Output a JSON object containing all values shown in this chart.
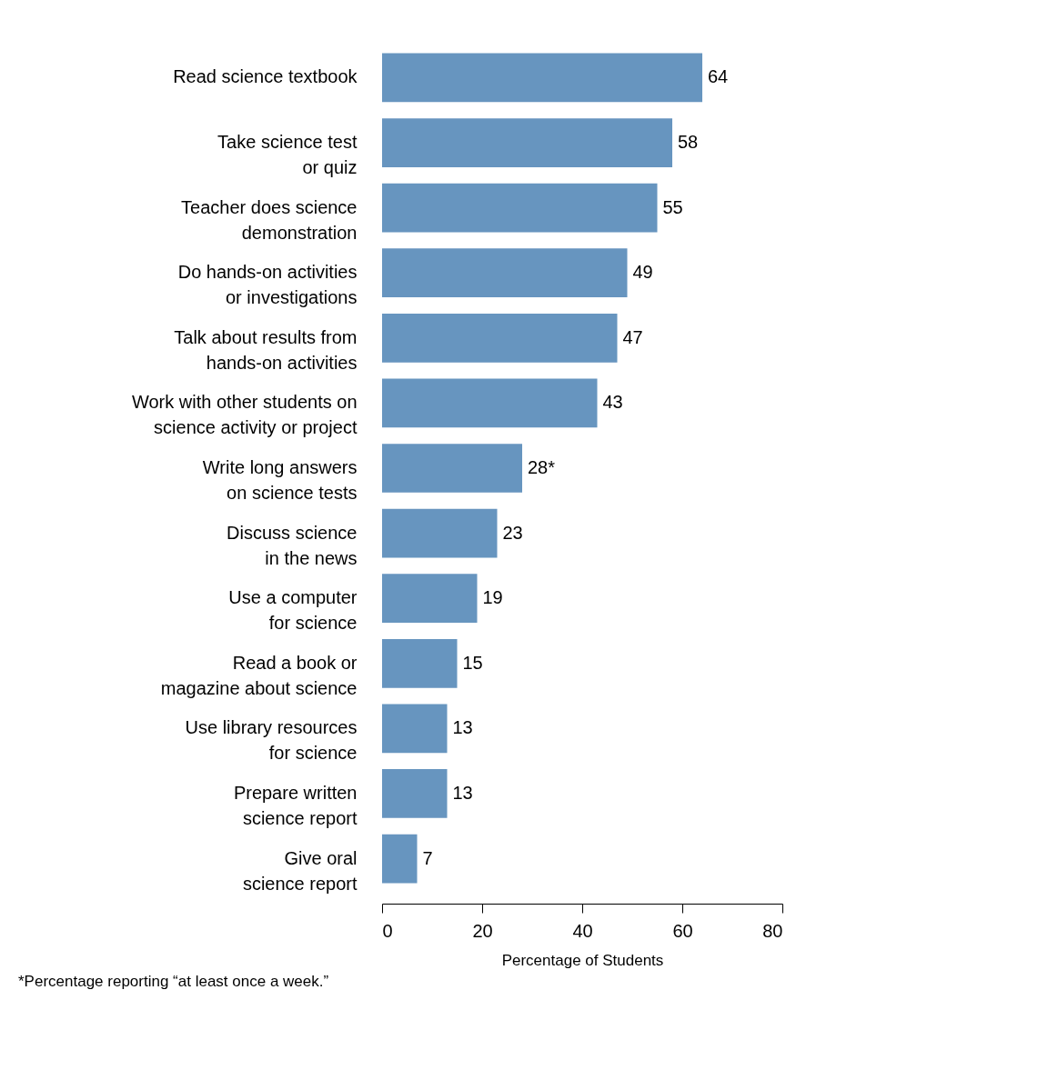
{
  "chart_data": {
    "type": "bar",
    "orientation": "horizontal",
    "categories": [
      "Read science textbook",
      "Take science test\nor quiz",
      "Teacher does science\ndemonstration",
      "Do hands-on activities\nor investigations",
      "Talk about results from\nhands-on activities",
      "Work with other students on\nscience activity or project",
      "Write long answers\non science tests",
      "Discuss science\nin the news",
      "Use a computer\nfor science",
      "Read a book or\nmagazine about science",
      "Use library resources\nfor science",
      "Prepare written\nscience report",
      "Give oral\nscience report"
    ],
    "values": [
      64,
      58,
      55,
      49,
      47,
      43,
      28,
      23,
      19,
      15,
      13,
      13,
      7
    ],
    "value_labels": [
      "64",
      "58",
      "55",
      "49",
      "47",
      "43",
      "28*",
      "23",
      "19",
      "15",
      "13",
      "13",
      "7"
    ],
    "color": "#6795bf",
    "xlim": [
      0,
      80
    ],
    "xticks": [
      0,
      20,
      40,
      60,
      80
    ],
    "xlabel": "Percentage of Students",
    "annotations": [
      "*Percentage reporting “at least once a week.”"
    ],
    "grid": false
  }
}
